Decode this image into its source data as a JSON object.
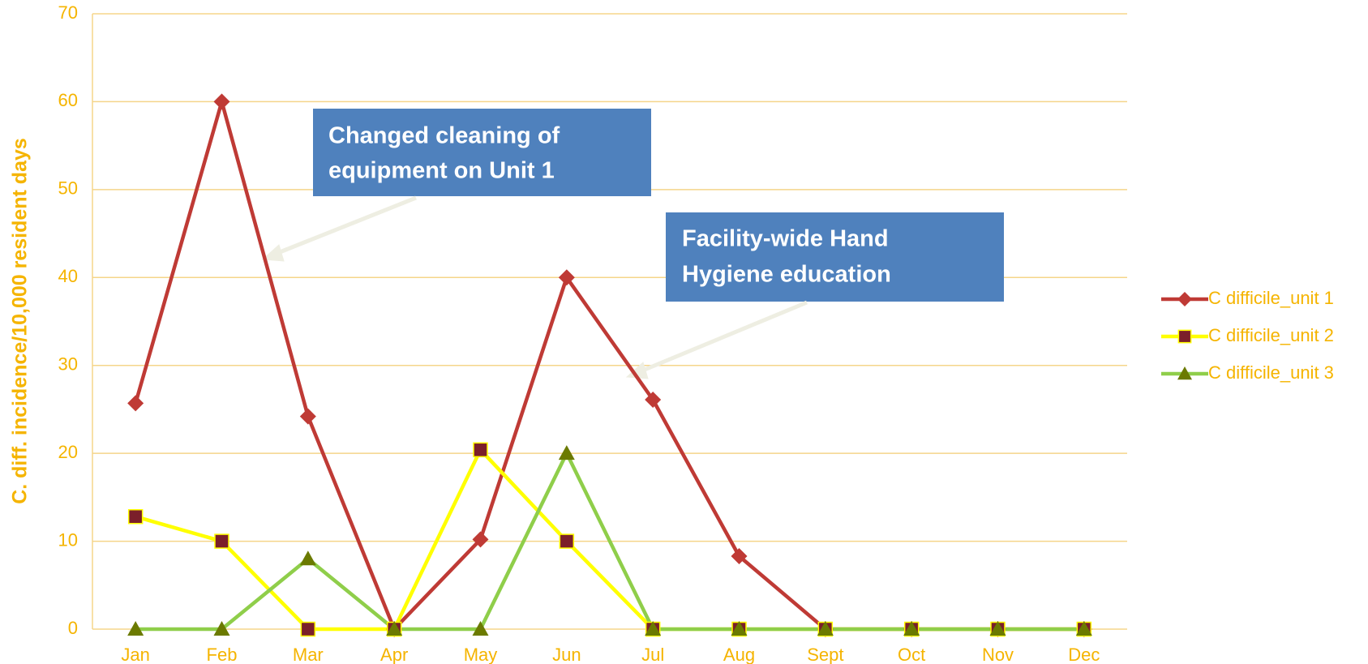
{
  "chart_data": {
    "type": "line",
    "y_label": "C. diff. incidence/10,000 resident days",
    "categories": [
      "Jan",
      "Feb",
      "Mar",
      "Apr",
      "May",
      "Jun",
      "Jul",
      "Aug",
      "Sept",
      "Oct",
      "Nov",
      "Dec"
    ],
    "series": [
      {
        "name": "C difficile_unit 1",
        "color": "#bf3a35",
        "marker": "diamond",
        "marker_color": "#bf3a35",
        "values": [
          25.7,
          60,
          24.2,
          0,
          10.2,
          40,
          26.1,
          8.3,
          0,
          0,
          0,
          0
        ]
      },
      {
        "name": "C difficile_unit 2",
        "color": "#ffff00",
        "marker": "square",
        "marker_color": "#7b1f2a",
        "values": [
          12.8,
          10,
          0,
          0,
          20.4,
          10,
          0,
          0,
          0,
          0,
          0,
          0
        ]
      },
      {
        "name": "C difficile_unit 3",
        "color": "#8fce4a",
        "marker": "triangle",
        "marker_color": "#6b7a00",
        "values": [
          0,
          0,
          8,
          0,
          0,
          20,
          0,
          0,
          0,
          0,
          0,
          0
        ]
      }
    ],
    "ylim": [
      0,
      70
    ],
    "yticks": [
      0,
      10,
      20,
      30,
      40,
      50,
      60,
      70
    ],
    "grid": true,
    "legend": "right",
    "annotations": [
      {
        "lines": [
          "Changed cleaning  of",
          "equipment on Unit 1"
        ]
      },
      {
        "lines": [
          "Facility-wide Hand",
          "Hygiene education"
        ]
      }
    ]
  }
}
